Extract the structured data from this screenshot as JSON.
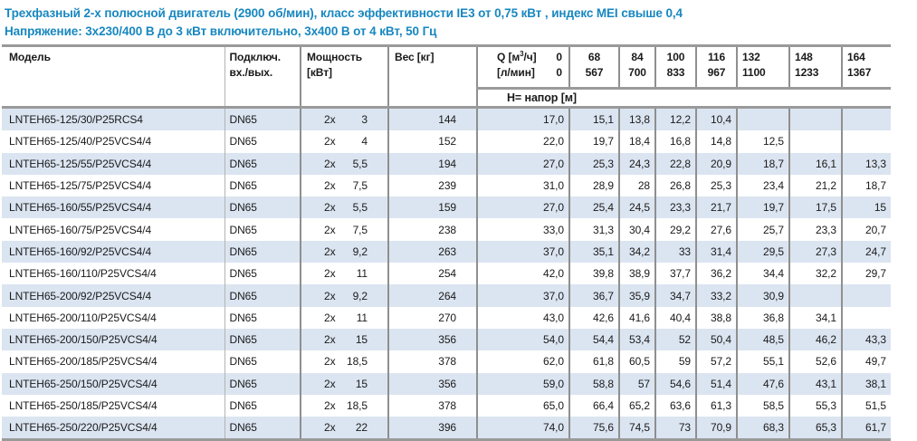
{
  "header": {
    "line1": "Трехфазный 2-х полюсной двигатель (2900 об/мин), класс эффективности IE3 от 0,75 кВт ,  индекс MEI свыше 0,4",
    "line2": "Напряжение: 3х230/400 В до 3 кВт включительно, 3х400 В от 4 кВт, 50 Гц"
  },
  "colors": {
    "accent_blue": "#1787c0",
    "row_alt_blue": "#dbe5f1",
    "border_strong": "#8f8f8f",
    "border_thin": "#b3b3b3",
    "border_heavy": "#9a9a9a"
  },
  "table": {
    "headers": {
      "model": "Модель",
      "connection_line1": "Подключ.",
      "connection_line2": "вх./вых.",
      "power_line1": "Мощность",
      "power_line2": "[кВт]",
      "weight": "Вес [кг]"
    },
    "flow": {
      "q_label": "Q [м³/ч]",
      "q_zero": "0",
      "lmin_label": "[л/мин]",
      "lmin_zero": "0",
      "columns": [
        {
          "m3h": "68",
          "lmin": "567"
        },
        {
          "m3h": "84",
          "lmin": "700"
        },
        {
          "m3h": "100",
          "lmin": "833"
        },
        {
          "m3h": "116",
          "lmin": "967"
        },
        {
          "m3h": "132",
          "lmin": "1100"
        },
        {
          "m3h": "148",
          "lmin": "1233"
        },
        {
          "m3h": "164",
          "lmin": "1367"
        }
      ]
    },
    "head_label": "Н= напор [м]",
    "rows": [
      {
        "model": "LNTEH65-125/30/P25RCS4",
        "connection": "DN65",
        "power_prefix": "2x",
        "power": "3",
        "weight": "144",
        "heads": [
          "17,0",
          "15,1",
          "13,8",
          "12,2",
          "10,4",
          "",
          "",
          ""
        ]
      },
      {
        "model": "LNTEH65-125/40/P25VCS4/4",
        "connection": "DN65",
        "power_prefix": "2x",
        "power": "4",
        "weight": "152",
        "heads": [
          "22,0",
          "19,7",
          "18,4",
          "16,8",
          "14,8",
          "12,5",
          "",
          ""
        ]
      },
      {
        "model": "LNTEH65-125/55/P25VCS4/4",
        "connection": "DN65",
        "power_prefix": "2x",
        "power": "5,5",
        "weight": "194",
        "heads": [
          "27,0",
          "25,3",
          "24,3",
          "22,8",
          "20,9",
          "18,7",
          "16,1",
          "13,3"
        ]
      },
      {
        "model": "LNTEH65-125/75/P25VCS4/4",
        "connection": "DN65",
        "power_prefix": "2x",
        "power": "7,5",
        "weight": "239",
        "heads": [
          "31,0",
          "28,9",
          "28",
          "26,8",
          "25,3",
          "23,4",
          "21,2",
          "18,7"
        ]
      },
      {
        "model": "LNTEH65-160/55/P25VCS4/4",
        "connection": "DN65",
        "power_prefix": "2x",
        "power": "5,5",
        "weight": "159",
        "heads": [
          "27,0",
          "25,4",
          "24,5",
          "23,3",
          "21,7",
          "19,7",
          "17,5",
          "15"
        ]
      },
      {
        "model": "LNTEH65-160/75/P25VCS4/4",
        "connection": "DN65",
        "power_prefix": "2x",
        "power": "7,5",
        "weight": "238",
        "heads": [
          "33,0",
          "31,3",
          "30,4",
          "29,2",
          "27,6",
          "25,7",
          "23,3",
          "20,7"
        ]
      },
      {
        "model": "LNTEH65-160/92/P25VCS4/4",
        "connection": "DN65",
        "power_prefix": "2x",
        "power": "9,2",
        "weight": "263",
        "heads": [
          "37,0",
          "35,1",
          "34,2",
          "33",
          "31,4",
          "29,5",
          "27,3",
          "24,7"
        ]
      },
      {
        "model": "LNTEH65-160/110/P25VCS4/4",
        "connection": "DN65",
        "power_prefix": "2x",
        "power": "11",
        "weight": "254",
        "heads": [
          "42,0",
          "39,8",
          "38,9",
          "37,7",
          "36,2",
          "34,4",
          "32,2",
          "29,7"
        ]
      },
      {
        "model": "LNTEH65-200/92/P25VCS4/4",
        "connection": "DN65",
        "power_prefix": "2x",
        "power": "9,2",
        "weight": "264",
        "heads": [
          "37,0",
          "36,7",
          "35,9",
          "34,7",
          "33,2",
          "30,9",
          "",
          ""
        ]
      },
      {
        "model": "LNTEH65-200/110/P25VCS4/4",
        "connection": "DN65",
        "power_prefix": "2x",
        "power": "11",
        "weight": "270",
        "heads": [
          "43,0",
          "42,6",
          "41,6",
          "40,4",
          "38,8",
          "36,8",
          "34,1",
          ""
        ]
      },
      {
        "model": "LNTEH65-200/150/P25VCS4/4",
        "connection": "DN65",
        "power_prefix": "2x",
        "power": "15",
        "weight": "356",
        "heads": [
          "54,0",
          "54,4",
          "53,4",
          "52",
          "50,4",
          "48,5",
          "46,2",
          "43,3"
        ]
      },
      {
        "model": "LNTEH65-200/185/P25VCS4/4",
        "connection": "DN65",
        "power_prefix": "2x",
        "power": "18,5",
        "weight": "378",
        "heads": [
          "62,0",
          "61,8",
          "60,5",
          "59",
          "57,2",
          "55,1",
          "52,6",
          "49,7"
        ]
      },
      {
        "model": "LNTEH65-250/150/P25VCS4/4",
        "connection": "DN65",
        "power_prefix": "2x",
        "power": "15",
        "weight": "356",
        "heads": [
          "59,0",
          "58,8",
          "57",
          "54,6",
          "51,4",
          "47,6",
          "43,1",
          "38,1"
        ]
      },
      {
        "model": "LNTEH65-250/185/P25VCS4/4",
        "connection": "DN65",
        "power_prefix": "2x",
        "power": "18,5",
        "weight": "378",
        "heads": [
          "65,0",
          "66,4",
          "65,2",
          "63,6",
          "61,3",
          "58,5",
          "55,3",
          "51,5"
        ]
      },
      {
        "model": "LNTEH65-250/220/P25VCS4/4",
        "connection": "DN65",
        "power_prefix": "2x",
        "power": "22",
        "weight": "396",
        "heads": [
          "74,0",
          "75,6",
          "74,5",
          "73",
          "70,9",
          "68,3",
          "65,3",
          "61,7"
        ]
      }
    ]
  }
}
